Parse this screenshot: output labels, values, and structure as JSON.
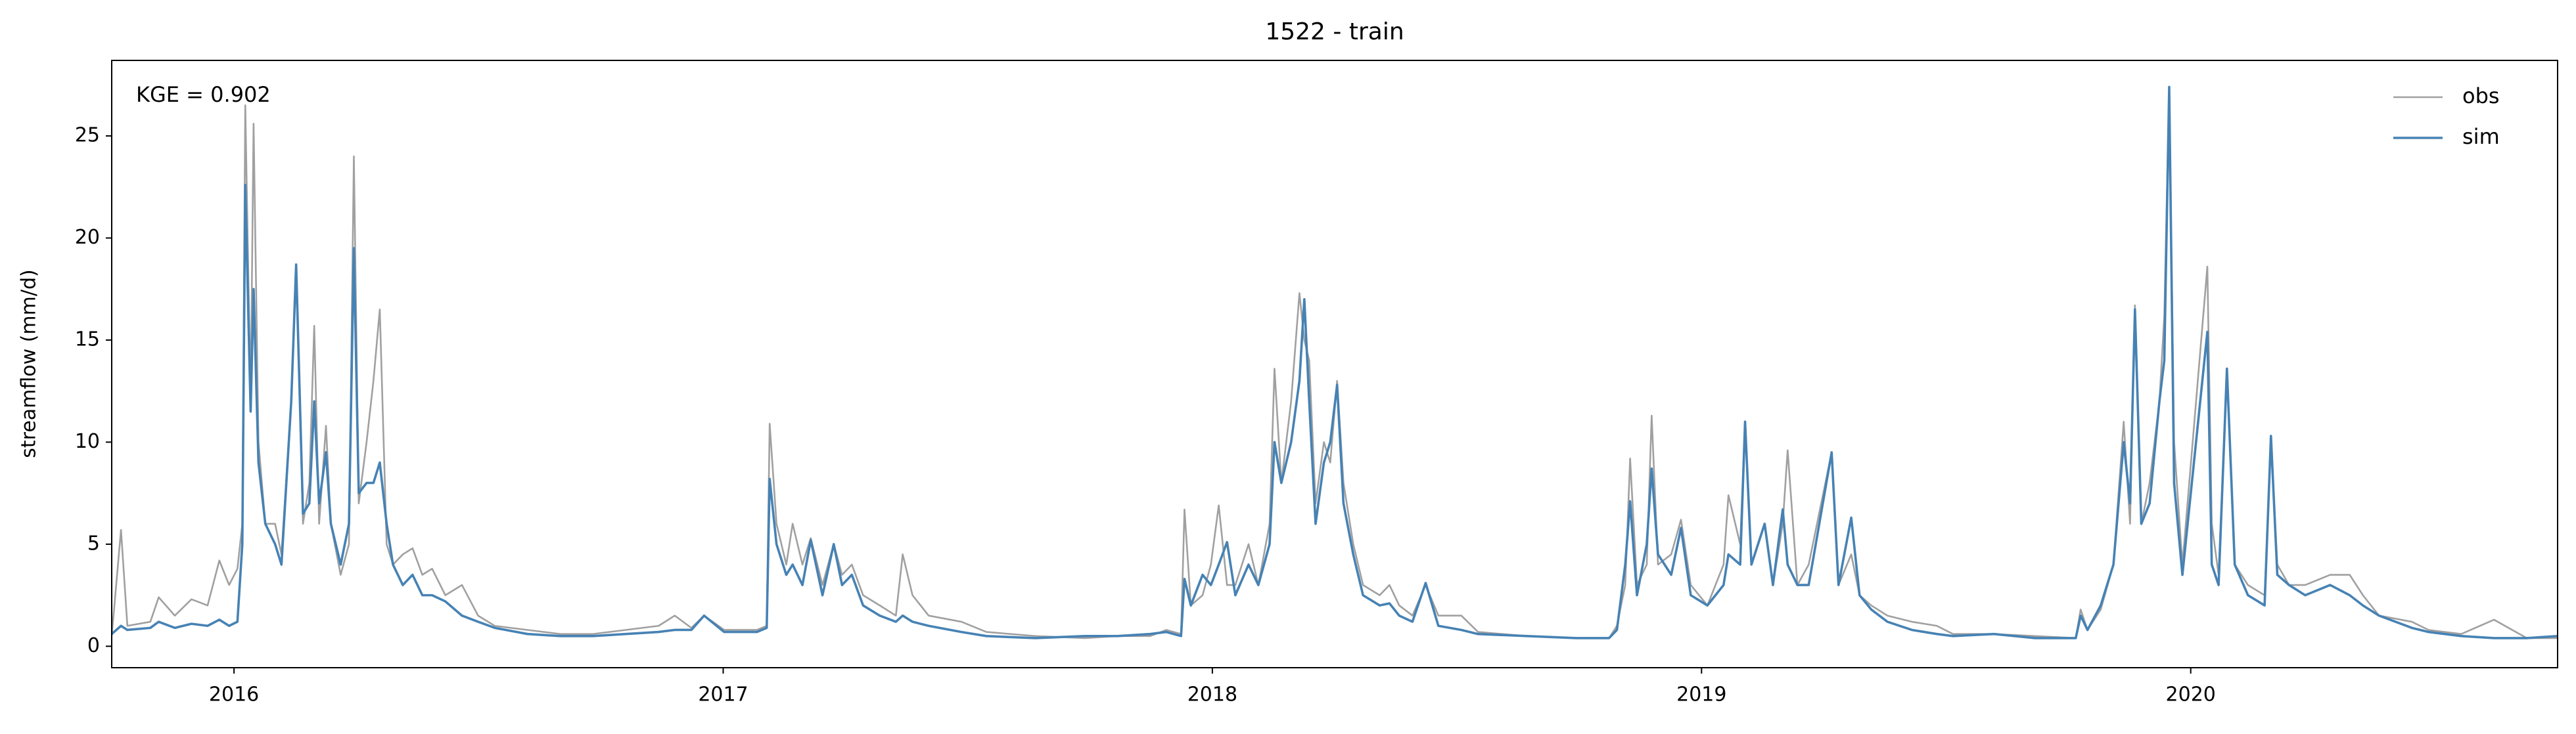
{
  "chart_data": {
    "type": "line",
    "title": "1522 - train",
    "ylabel": "streamflow (mm/d)",
    "annotation": "KGE = 0.902",
    "x": [
      2015.75,
      2015.769,
      2015.782,
      2015.829,
      2015.846,
      2015.879,
      2015.913,
      2015.946,
      2015.97,
      2015.99,
      2016.007,
      2016.017,
      2016.023,
      2016.034,
      2016.04,
      2016.05,
      2016.064,
      2016.084,
      2016.097,
      2016.117,
      2016.127,
      2016.141,
      2016.154,
      2016.164,
      2016.174,
      2016.188,
      2016.198,
      2016.218,
      2016.235,
      2016.245,
      2016.255,
      2016.271,
      2016.285,
      2016.298,
      2016.312,
      2016.325,
      2016.345,
      2016.365,
      2016.385,
      2016.405,
      2016.432,
      2016.466,
      2016.499,
      2016.533,
      2016.6,
      2016.667,
      2016.734,
      2016.801,
      2016.868,
      2016.901,
      2016.935,
      2016.961,
      2017.002,
      2017.069,
      2017.089,
      2017.095,
      2017.109,
      2017.129,
      2017.142,
      2017.162,
      2017.179,
      2017.203,
      2017.226,
      2017.243,
      2017.263,
      2017.286,
      2017.32,
      2017.353,
      2017.367,
      2017.387,
      2017.42,
      2017.487,
      2017.538,
      2017.638,
      2017.739,
      2017.806,
      2017.873,
      2017.906,
      2017.936,
      2017.943,
      2017.956,
      2017.98,
      2017.997,
      2018.013,
      2018.03,
      2018.047,
      2018.074,
      2018.094,
      2018.117,
      2018.127,
      2018.141,
      2018.161,
      2018.178,
      2018.188,
      2018.198,
      2018.211,
      2018.228,
      2018.241,
      2018.255,
      2018.268,
      2018.288,
      2018.308,
      2018.342,
      2018.362,
      2018.382,
      2018.409,
      2018.436,
      2018.462,
      2018.509,
      2018.543,
      2018.643,
      2018.744,
      2018.811,
      2018.827,
      2018.844,
      2018.854,
      2018.868,
      2018.888,
      2018.898,
      2018.911,
      2018.938,
      2018.958,
      2018.978,
      2019.012,
      2019.045,
      2019.055,
      2019.079,
      2019.089,
      2019.102,
      2019.129,
      2019.146,
      2019.166,
      2019.176,
      2019.196,
      2019.219,
      2019.266,
      2019.28,
      2019.306,
      2019.323,
      2019.347,
      2019.38,
      2019.43,
      2019.481,
      2019.514,
      2019.598,
      2019.682,
      2019.765,
      2019.775,
      2019.789,
      2019.816,
      2019.842,
      2019.863,
      2019.876,
      2019.886,
      2019.899,
      2019.916,
      2019.936,
      2019.946,
      2019.956,
      2019.966,
      2019.983,
      2020.034,
      2020.043,
      2020.057,
      2020.074,
      2020.09,
      2020.117,
      2020.151,
      2020.164,
      2020.177,
      2020.201,
      2020.234,
      2020.285,
      2020.325,
      2020.352,
      2020.385,
      2020.452,
      2020.486,
      2020.553,
      2020.62,
      2020.687,
      2020.75
    ],
    "series": [
      {
        "name": "obs",
        "color": "#a0a0a0",
        "values": [
          0.5,
          5.7,
          1.0,
          1.2,
          2.4,
          1.5,
          2.3,
          2.0,
          4.2,
          3.0,
          3.8,
          6,
          26.5,
          12,
          25.6,
          10,
          6,
          6,
          4.5,
          12,
          18.5,
          6,
          8,
          15.7,
          6,
          10.8,
          6,
          3.5,
          5,
          24,
          7,
          10,
          13,
          16.5,
          5,
          4,
          4.5,
          4.8,
          3.5,
          3.8,
          2.5,
          3,
          1.5,
          1.0,
          0.8,
          0.6,
          0.6,
          0.8,
          1.0,
          1.5,
          0.9,
          1.5,
          0.8,
          0.8,
          1.0,
          10.9,
          6,
          4,
          6,
          4,
          5.3,
          3,
          5,
          3.5,
          4,
          2.5,
          2,
          1.5,
          4.5,
          2.5,
          1.5,
          1.2,
          0.7,
          0.5,
          0.4,
          0.5,
          0.5,
          0.8,
          0.6,
          6.7,
          2,
          2.5,
          4,
          6.9,
          3,
          3,
          5,
          3,
          6,
          13.6,
          8,
          12,
          17.3,
          15,
          14,
          7,
          10,
          9,
          13,
          8,
          5,
          3,
          2.5,
          3,
          2,
          1.5,
          3,
          1.5,
          1.5,
          0.7,
          0.5,
          0.4,
          0.4,
          1.0,
          3,
          9.2,
          3,
          4,
          11.3,
          4,
          4.5,
          6.2,
          3,
          2,
          4,
          7.4,
          5,
          11,
          4,
          6,
          3,
          6,
          9.6,
          3,
          4,
          9.5,
          3,
          4.5,
          2.5,
          2,
          1.5,
          1.2,
          1.0,
          0.6,
          0.6,
          0.5,
          0.4,
          1.8,
          0.8,
          1.8,
          4,
          11,
          6,
          16.7,
          6,
          8,
          12,
          16.2,
          27.3,
          10,
          4,
          18.6,
          6,
          3.5,
          13.5,
          4,
          3,
          2.5,
          10,
          4,
          3,
          3,
          3.5,
          3.5,
          2.5,
          1.5,
          1.2,
          0.8,
          0.6,
          1.3,
          0.4,
          0.4
        ]
      },
      {
        "name": "sim",
        "color": "#4682b4",
        "values": [
          0.6,
          1.0,
          0.8,
          0.9,
          1.2,
          0.9,
          1.1,
          1.0,
          1.3,
          1.0,
          1.2,
          5,
          22.6,
          11.5,
          17.5,
          9,
          6,
          5,
          4,
          12,
          18.7,
          6.5,
          7,
          12,
          7,
          9.5,
          6,
          4,
          6,
          19.5,
          7.5,
          8,
          8,
          9,
          6,
          4,
          3,
          3.5,
          2.5,
          2.5,
          2.2,
          1.5,
          1.2,
          0.9,
          0.6,
          0.5,
          0.5,
          0.6,
          0.7,
          0.8,
          0.8,
          1.5,
          0.7,
          0.7,
          0.9,
          8.2,
          5,
          3.5,
          4,
          3,
          5.2,
          2.5,
          5,
          3,
          3.5,
          2,
          1.5,
          1.2,
          1.5,
          1.2,
          1.0,
          0.7,
          0.5,
          0.4,
          0.5,
          0.5,
          0.6,
          0.7,
          0.5,
          3.3,
          2,
          3.5,
          3,
          4,
          5.1,
          2.5,
          4,
          3,
          5,
          10,
          8,
          10,
          13,
          17,
          12,
          6,
          9,
          10,
          12.8,
          7,
          4.5,
          2.5,
          2,
          2.1,
          1.5,
          1.2,
          3.1,
          1.0,
          0.8,
          0.6,
          0.5,
          0.4,
          0.4,
          0.8,
          4,
          7.1,
          2.5,
          5,
          8.7,
          4.5,
          3.5,
          5.8,
          2.5,
          2,
          3,
          4.5,
          4,
          11,
          4,
          6,
          3,
          6.7,
          4,
          3,
          3,
          9.5,
          3,
          6.3,
          2.5,
          1.8,
          1.2,
          0.8,
          0.6,
          0.5,
          0.6,
          0.4,
          0.4,
          1.5,
          0.8,
          2,
          4,
          10,
          7,
          16.5,
          6,
          7,
          12,
          14,
          27.4,
          8,
          3.5,
          15.4,
          4,
          3,
          13.6,
          4,
          2.5,
          2,
          10.3,
          3.5,
          3,
          2.5,
          3,
          2.5,
          2,
          1.5,
          0.9,
          0.7,
          0.5,
          0.4,
          0.4,
          0.5
        ]
      }
    ],
    "xlim": [
      2015.75,
      2020.75
    ],
    "xticks": [
      2016,
      2017,
      2018,
      2019,
      2020
    ],
    "ylim": [
      -1.05,
      28.7
    ],
    "yticks": [
      0,
      5,
      10,
      15,
      20,
      25
    ],
    "grid": false,
    "legend": "upper right"
  }
}
